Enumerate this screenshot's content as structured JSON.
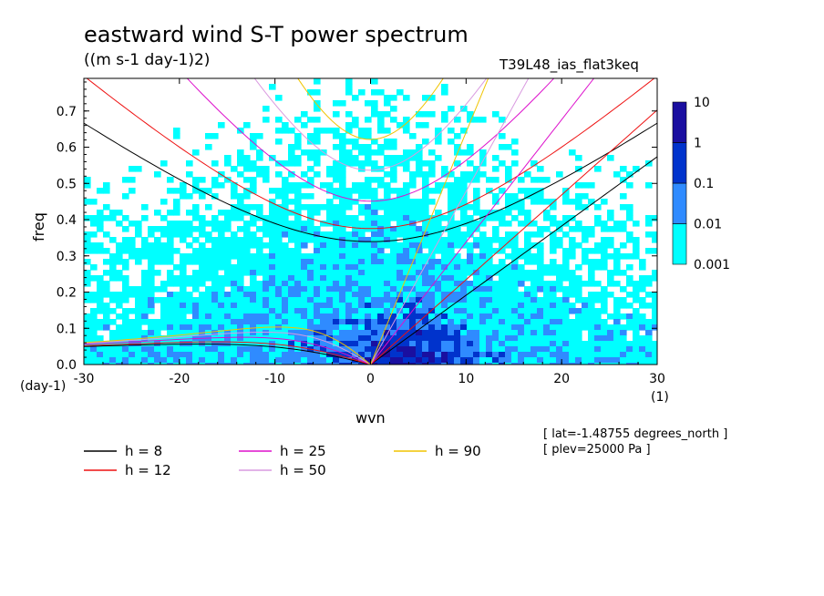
{
  "title": "eastward wind S-T power spectrum",
  "units": "((m s-1 day-1)2)",
  "run_name": "T39L48_ias_flat3keq",
  "meta": {
    "line1": "[ lat=-1.48755 degrees_north ]",
    "line2": "[ plev=25000 Pa ]"
  },
  "chart_data": {
    "type": "heatmap",
    "xlabel": "wvn",
    "ylabel": "freq",
    "x_unit": "(1)",
    "y_unit": "(day-1)",
    "xlim": [
      -30,
      30
    ],
    "ylim": [
      0,
      0.79
    ],
    "x_ticks": [
      -30,
      -20,
      -10,
      0,
      10,
      20,
      30
    ],
    "x_tick_labels": [
      "-30",
      "-20",
      "-10",
      "0",
      "10",
      "20",
      "30"
    ],
    "y_ticks": [
      0,
      0.1,
      0.2,
      0.3,
      0.4,
      0.5,
      0.6,
      0.7
    ],
    "y_tick_labels": [
      "0.0",
      "0.1",
      "0.2",
      "0.3",
      "0.4",
      "0.5",
      "0.6",
      "0.7"
    ],
    "colorbar": {
      "levels": [
        "0.001",
        "0.01",
        "0.1",
        "1",
        "10"
      ],
      "colors": [
        "#00ffff",
        "#2f8bff",
        "#0033cc",
        "#1a0fa0"
      ]
    },
    "dispersion_curves": [
      {
        "label": "h =  8",
        "h": 8,
        "color": "#000000"
      },
      {
        "label": "h = 12",
        "h": 12,
        "color": "#ee1111"
      },
      {
        "label": "h = 25",
        "h": 25,
        "color": "#dd10cc"
      },
      {
        "label": "h = 50",
        "h": 50,
        "color": "#d99ae0"
      },
      {
        "label": "h = 90",
        "h": 90,
        "color": "#f0c400"
      }
    ],
    "grid": false
  }
}
